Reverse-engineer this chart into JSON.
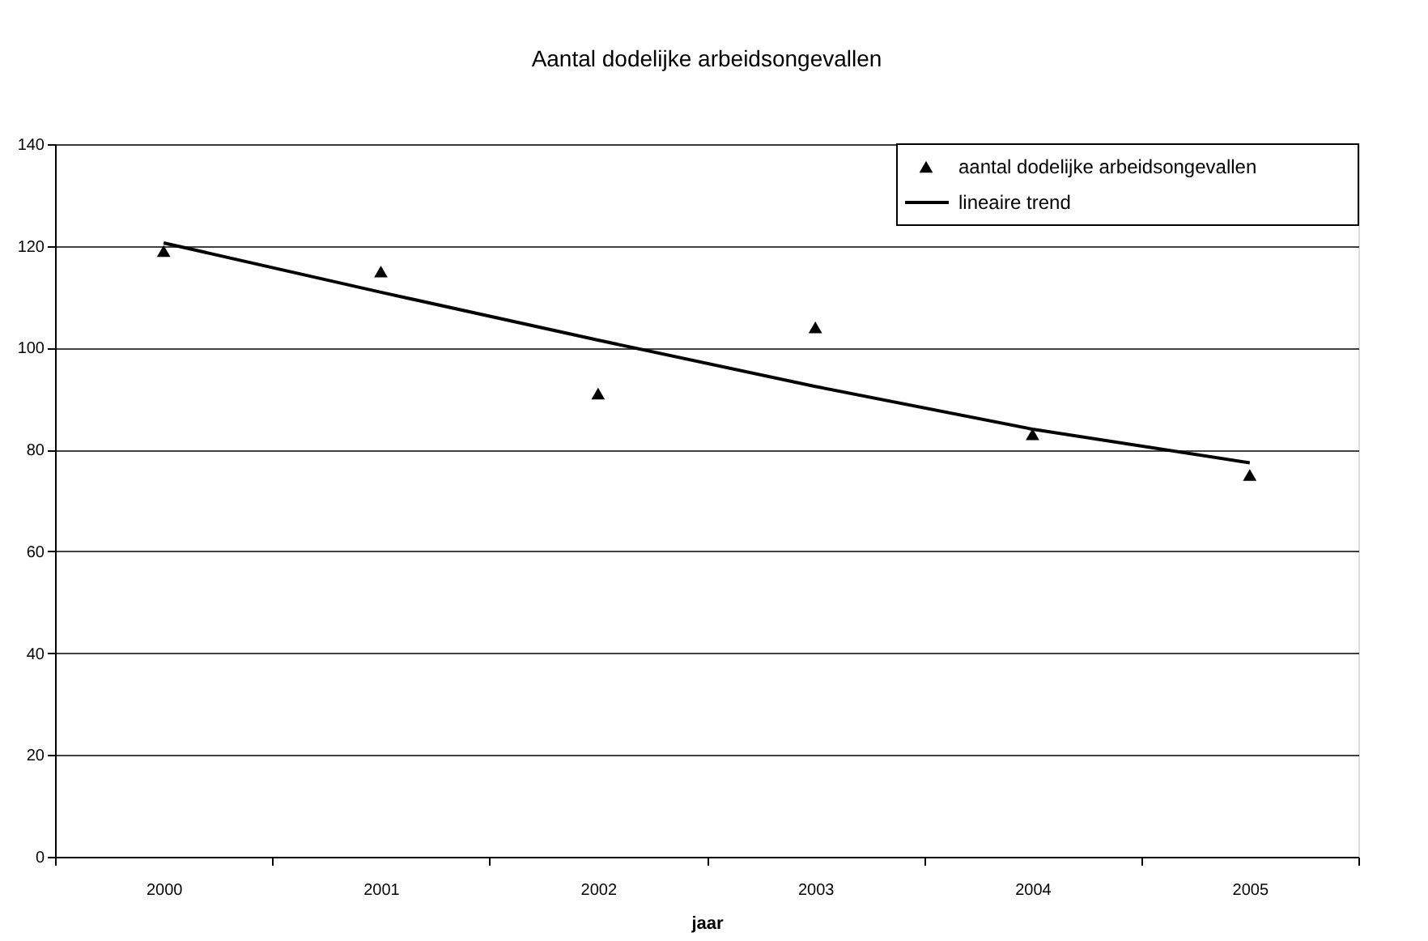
{
  "chart_data": {
    "type": "scatter",
    "title": "Aantal dodelijke arbeidsongevallen",
    "xlabel": "jaar",
    "categories": [
      "2000",
      "2001",
      "2002",
      "2003",
      "2004",
      "2005"
    ],
    "series": [
      {
        "name": "aantal dodelijke arbeidsongevallen",
        "marker": "triangle",
        "color": "#000000",
        "values": [
          119,
          115,
          91,
          104,
          83,
          75
        ]
      },
      {
        "name": "lineaire trend",
        "type": "line",
        "color": "#000000",
        "values": [
          120.6,
          110.9,
          101.5,
          92.4,
          84,
          77.4
        ]
      }
    ],
    "ylim": [
      0,
      140
    ],
    "yticks": [
      0,
      20,
      40,
      60,
      80,
      100,
      120,
      140
    ],
    "grid": "y",
    "legend": "top right"
  }
}
